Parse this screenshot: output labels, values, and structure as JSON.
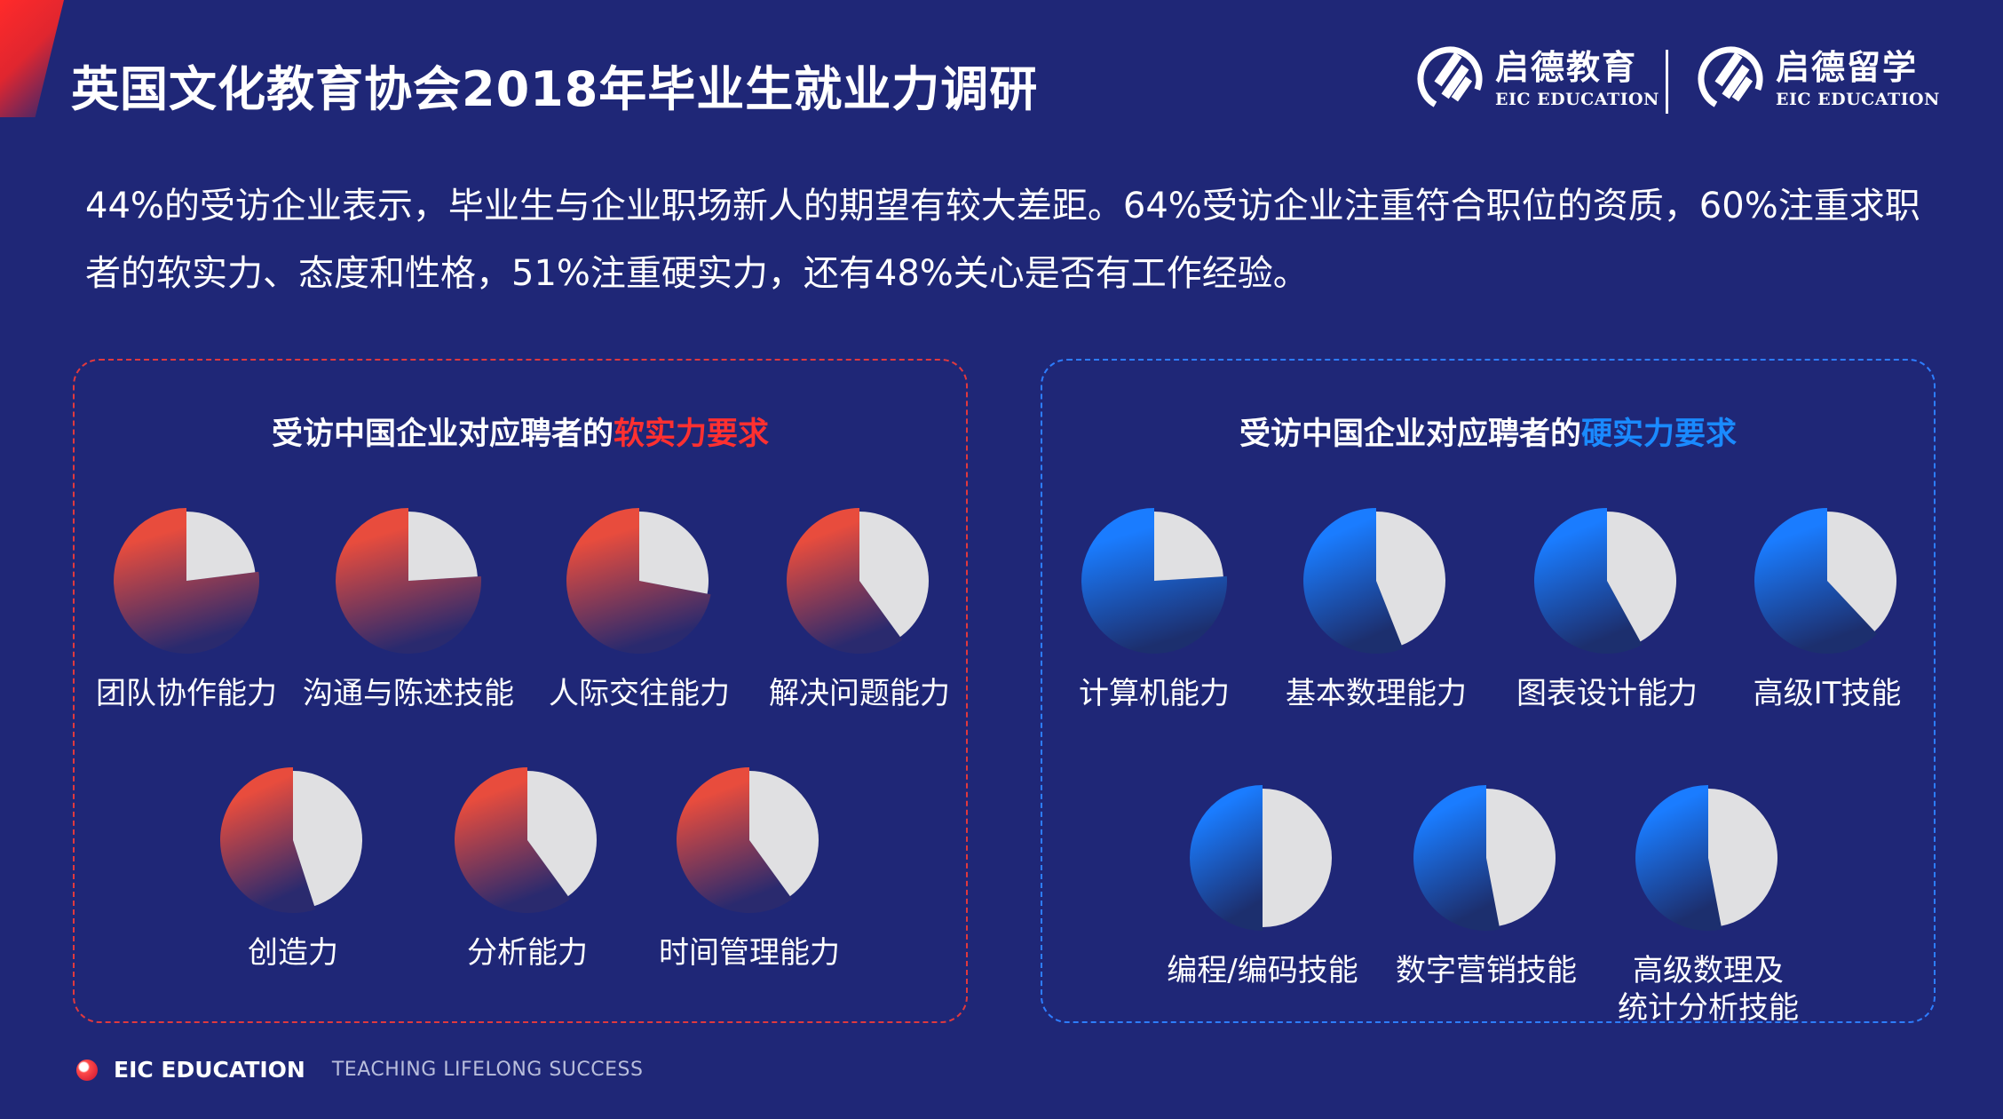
{
  "title": "英国文化教育协会2018年毕业生就业力调研",
  "brands": [
    {
      "cn": "启德教育",
      "en": "EIC EDUCATION"
    },
    {
      "cn": "启德留学",
      "en": "EIC EDUCATION"
    }
  ],
  "summary": "44%的受访企业表示，毕业生与企业职场新人的期望有较大差距。64%受访企业注重符合职位的资质，60%注重求职者的软实力、态度和性格，51%注重硬实力，还有48%关心是否有工作经验。",
  "soft_panel": {
    "heading_prefix": "受访中国企业对应聘者的",
    "heading_highlight": "软实力要求",
    "items": [
      {
        "label": "团队协作能力",
        "filled_fraction": 0.77
      },
      {
        "label": "沟通与陈述技能",
        "filled_fraction": 0.76
      },
      {
        "label": "人际交往能力",
        "filled_fraction": 0.72
      },
      {
        "label": "解决问题能力",
        "filled_fraction": 0.6
      },
      {
        "label": "创造力",
        "filled_fraction": 0.55
      },
      {
        "label": "分析能力",
        "filled_fraction": 0.6
      },
      {
        "label": "时间管理能力",
        "filled_fraction": 0.6
      }
    ]
  },
  "hard_panel": {
    "heading_prefix": "受访中国企业对应聘者的",
    "heading_highlight": "硬实力要求",
    "items": [
      {
        "label": "计算机能力",
        "filled_fraction": 0.76
      },
      {
        "label": "基本数理能力",
        "filled_fraction": 0.56
      },
      {
        "label": "图表设计能力",
        "filled_fraction": 0.58
      },
      {
        "label": "高级IT技能",
        "filled_fraction": 0.62
      },
      {
        "label": "编程/编码技能",
        "filled_fraction": 0.5
      },
      {
        "label": "数字营销技能",
        "filled_fraction": 0.53
      },
      {
        "label": "高级数理及\n统计分析技能",
        "filled_fraction": 0.53
      }
    ]
  },
  "footer": {
    "brand": "EIC EDUCATION",
    "slogan": "TEACHING LIFELONG SUCCESS"
  },
  "colors": {
    "background": "#1f2777",
    "soft_accent": "#e84c3d",
    "hard_accent": "#1a7cff",
    "pie_remainder": "#e0e0e2"
  }
}
